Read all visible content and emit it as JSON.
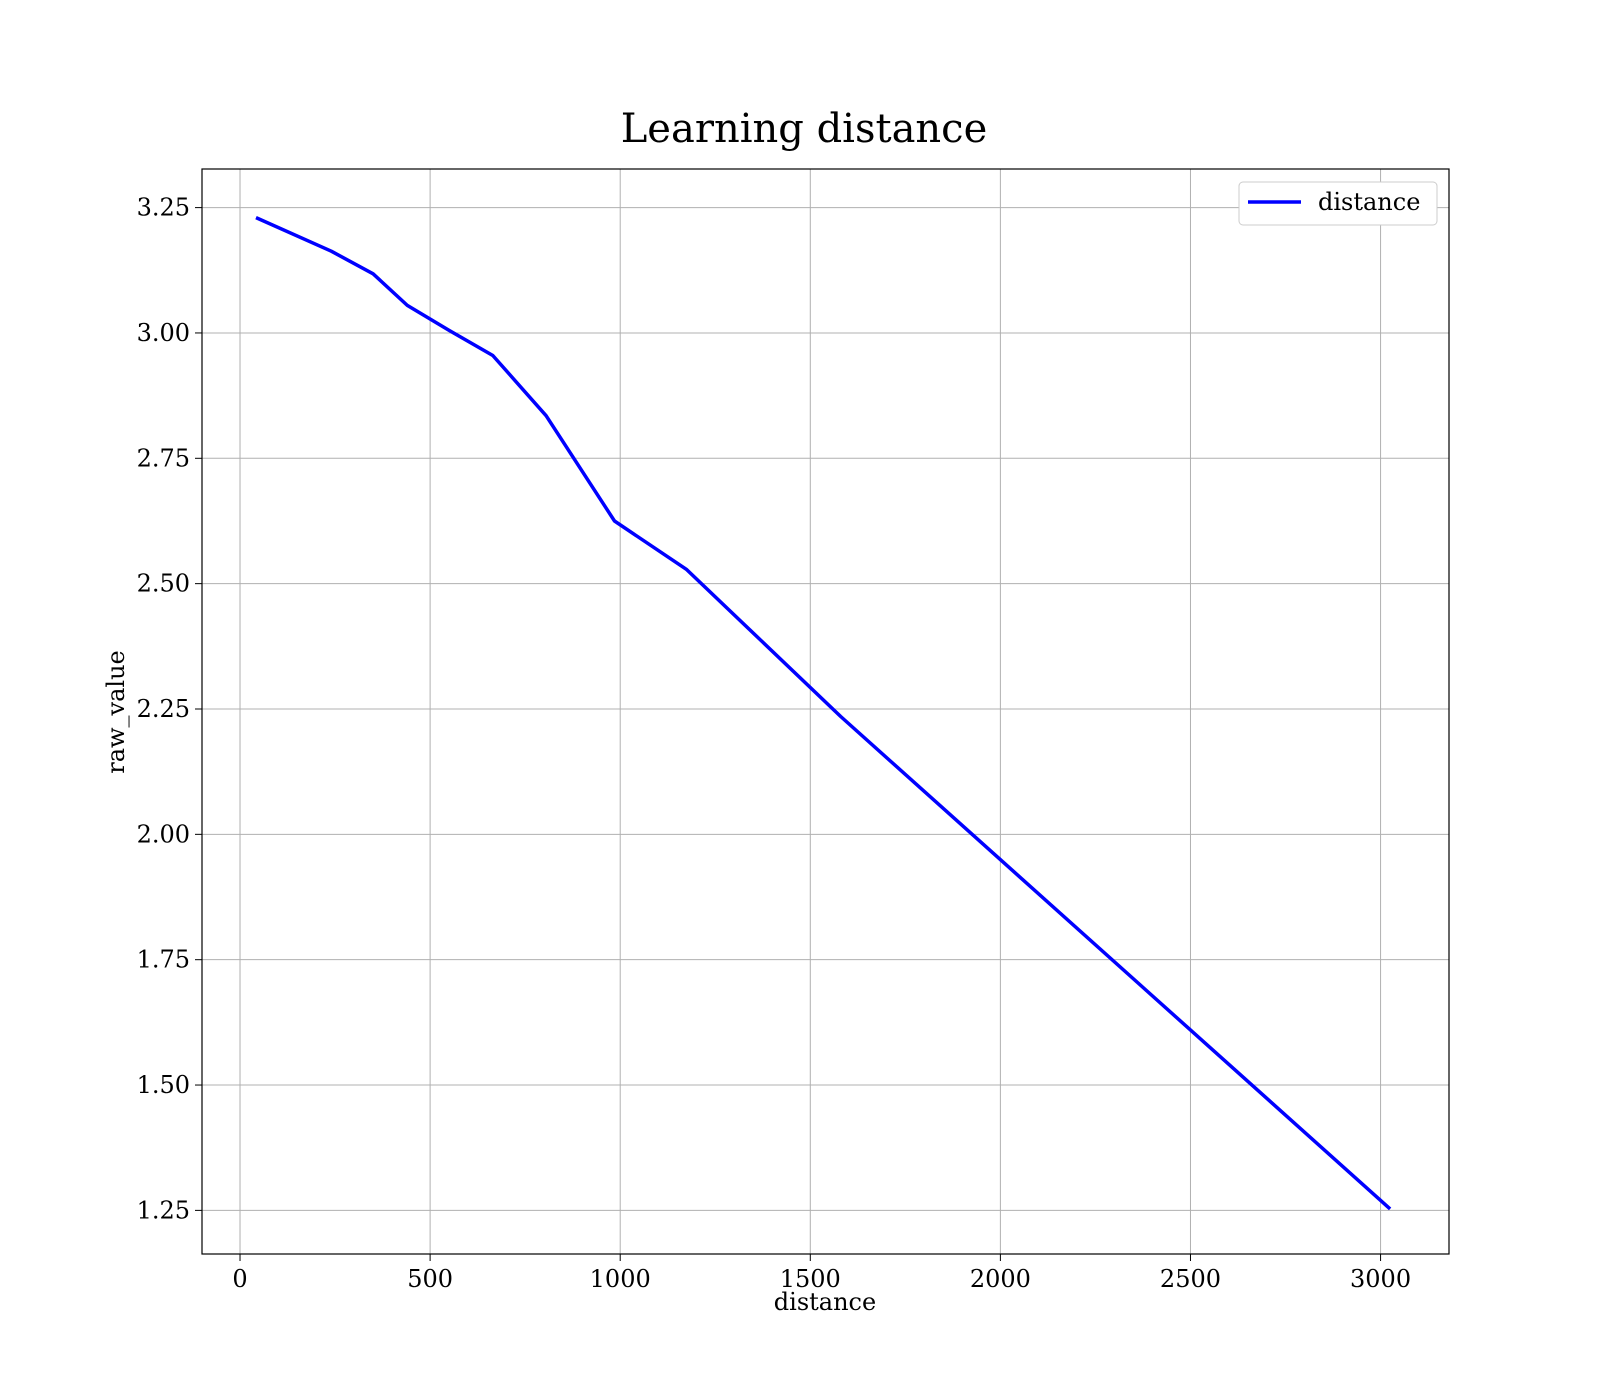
{
  "chart_data": {
    "type": "line",
    "title": "Learning distance",
    "xlabel": "distance",
    "ylabel": "raw_value",
    "xlim": [
      -100,
      3180
    ],
    "ylim": [
      1.163,
      3.327
    ],
    "xticks": [
      0,
      500,
      1000,
      1500,
      2000,
      2500,
      3000
    ],
    "xtick_labels": [
      "0",
      "500",
      "1000",
      "1500",
      "2000",
      "2500",
      "3000"
    ],
    "yticks": [
      1.25,
      1.5,
      1.75,
      2.0,
      2.25,
      2.5,
      2.75,
      3.0,
      3.25
    ],
    "ytick_labels": [
      "1.25",
      "1.50",
      "1.75",
      "2.00",
      "2.25",
      "2.50",
      "2.75",
      "3.00",
      "3.25"
    ],
    "grid": true,
    "legend_position": "top-right",
    "series": [
      {
        "name": "distance",
        "color": "#0000ff",
        "x": [
          42,
          240,
          350,
          440,
          550,
          665,
          805,
          985,
          1175,
          1580,
          3025
        ],
        "y": [
          3.23,
          3.163,
          3.118,
          3.055,
          3.005,
          2.955,
          2.835,
          2.625,
          2.528,
          2.235,
          1.253
        ]
      }
    ]
  }
}
